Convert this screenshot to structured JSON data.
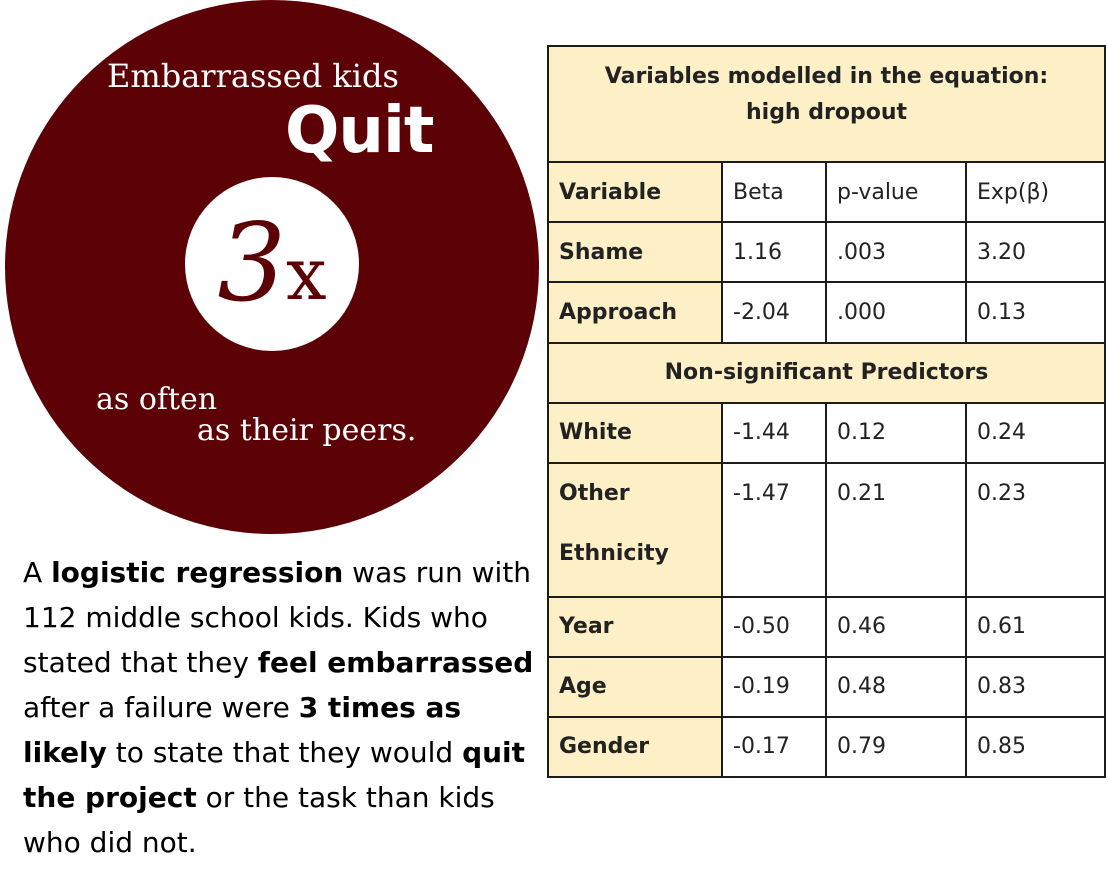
{
  "infographic": {
    "top_line": "Embarrassed kids",
    "headline": "Quit",
    "multiplier_number": "3",
    "multiplier_x": "x",
    "line_one": "as often",
    "line_two": "as their peers.",
    "colors": {
      "circle": "#5c0206",
      "text": "#ffffff"
    }
  },
  "description": {
    "p1": "A ",
    "b1": "logistic regression",
    "p2": " was run with 112 middle school kids. Kids who stated that they ",
    "b2": "feel embarrassed",
    "p3": " after a failure were ",
    "b3": "3 times as likely",
    "p4": " to state that they would ",
    "b4": "quit the project",
    "p5": " or the task than kids who did not."
  },
  "table": {
    "title_line1": "Variables modelled in the equation:",
    "title_line2": "high dropout",
    "columns": [
      "Variable",
      "Beta",
      "p-value",
      "Exp(β)"
    ],
    "significant_rows": [
      {
        "variable": "Shame",
        "beta": "1.16",
        "p": ".003",
        "exp": "3.20"
      },
      {
        "variable": "Approach",
        "beta": "-2.04",
        "p": ".000",
        "exp": "0.13"
      }
    ],
    "section_label": "Non-significant Predictors",
    "nonsig_rows": [
      {
        "variable": "White",
        "beta": "-1.44",
        "p": "0.12",
        "exp": "0.24"
      },
      {
        "variable_line1": "Other",
        "variable_line2": "Ethnicity",
        "beta": "-1.47",
        "p": "0.21",
        "exp": "0.23"
      },
      {
        "variable": "Year",
        "beta": "-0.50",
        "p": "0.46",
        "exp": "0.61"
      },
      {
        "variable": "Age",
        "beta": "-0.19",
        "p": "0.48",
        "exp": "0.83"
      },
      {
        "variable": "Gender",
        "beta": "-0.17",
        "p": "0.79",
        "exp": "0.85"
      }
    ],
    "colors": {
      "header_bg": "#fdf0c6",
      "border": "#1c1c1c"
    }
  }
}
